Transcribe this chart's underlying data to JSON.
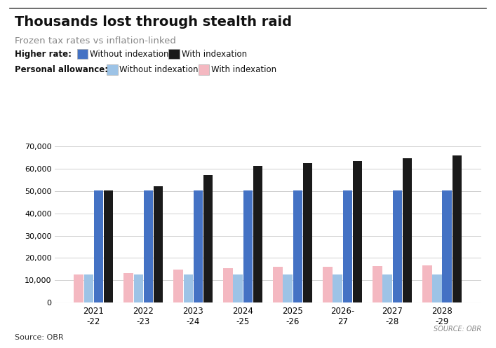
{
  "title": "Thousands lost through stealth raid",
  "subtitle": "Frozen tax rates vs inflation-linked",
  "categories": [
    "2021\n-22",
    "2022\n-23",
    "2023\n-24",
    "2024\n-25",
    "2025\n-26",
    "2026-\n27",
    "2027\n-28",
    "2028\n-29"
  ],
  "higher_rate_without": [
    50270,
    50270,
    50270,
    50270,
    50270,
    50270,
    50270,
    50270
  ],
  "higher_rate_with": [
    50270,
    52000,
    57000,
    61000,
    62500,
    63500,
    64500,
    66000
  ],
  "pa_without": [
    12570,
    12570,
    12570,
    12570,
    12570,
    12570,
    12570,
    12570
  ],
  "pa_with": [
    12570,
    13200,
    14700,
    15500,
    16000,
    16200,
    16500,
    16800
  ],
  "color_hr_without": "#4472C4",
  "color_hr_with": "#1a1a1a",
  "color_pa_without": "#9dc3e6",
  "color_pa_with": "#f4b8c1",
  "ylim": [
    0,
    70000
  ],
  "yticks": [
    0,
    10000,
    20000,
    30000,
    40000,
    50000,
    60000,
    70000
  ],
  "source_text": "Source: OBR",
  "source_text_right": "SOURCE: OBR",
  "background_color": "#ffffff",
  "grid_color": "#d0d0d0"
}
